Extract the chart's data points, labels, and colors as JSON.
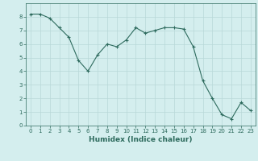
{
  "xlabel": "Humidex (Indice chaleur)",
  "x": [
    0,
    1,
    2,
    3,
    4,
    5,
    6,
    7,
    8,
    9,
    10,
    11,
    12,
    13,
    14,
    15,
    16,
    17,
    18,
    19,
    20,
    21,
    22,
    23
  ],
  "y": [
    8.2,
    8.2,
    7.9,
    7.2,
    6.5,
    4.8,
    4.0,
    5.2,
    6.0,
    5.8,
    6.3,
    7.2,
    6.8,
    7.0,
    7.2,
    7.2,
    7.1,
    5.8,
    3.3,
    2.0,
    0.8,
    0.5,
    1.7,
    1.1
  ],
  "line_color": "#2e6b5e",
  "marker": "+",
  "bg_color": "#d4eeee",
  "grid_color": "#b8d8d8",
  "spine_color": "#2e6b5e",
  "tick_color": "#2e6b5e",
  "label_color": "#2e6b5e",
  "ylim": [
    0,
    9
  ],
  "xlim": [
    -0.5,
    23.5
  ],
  "yticks": [
    0,
    1,
    2,
    3,
    4,
    5,
    6,
    7,
    8
  ],
  "xticks": [
    0,
    1,
    2,
    3,
    4,
    5,
    6,
    7,
    8,
    9,
    10,
    11,
    12,
    13,
    14,
    15,
    16,
    17,
    18,
    19,
    20,
    21,
    22,
    23
  ],
  "label_fontsize": 6.5,
  "tick_fontsize": 5.0,
  "marker_size": 3,
  "linewidth": 0.8
}
